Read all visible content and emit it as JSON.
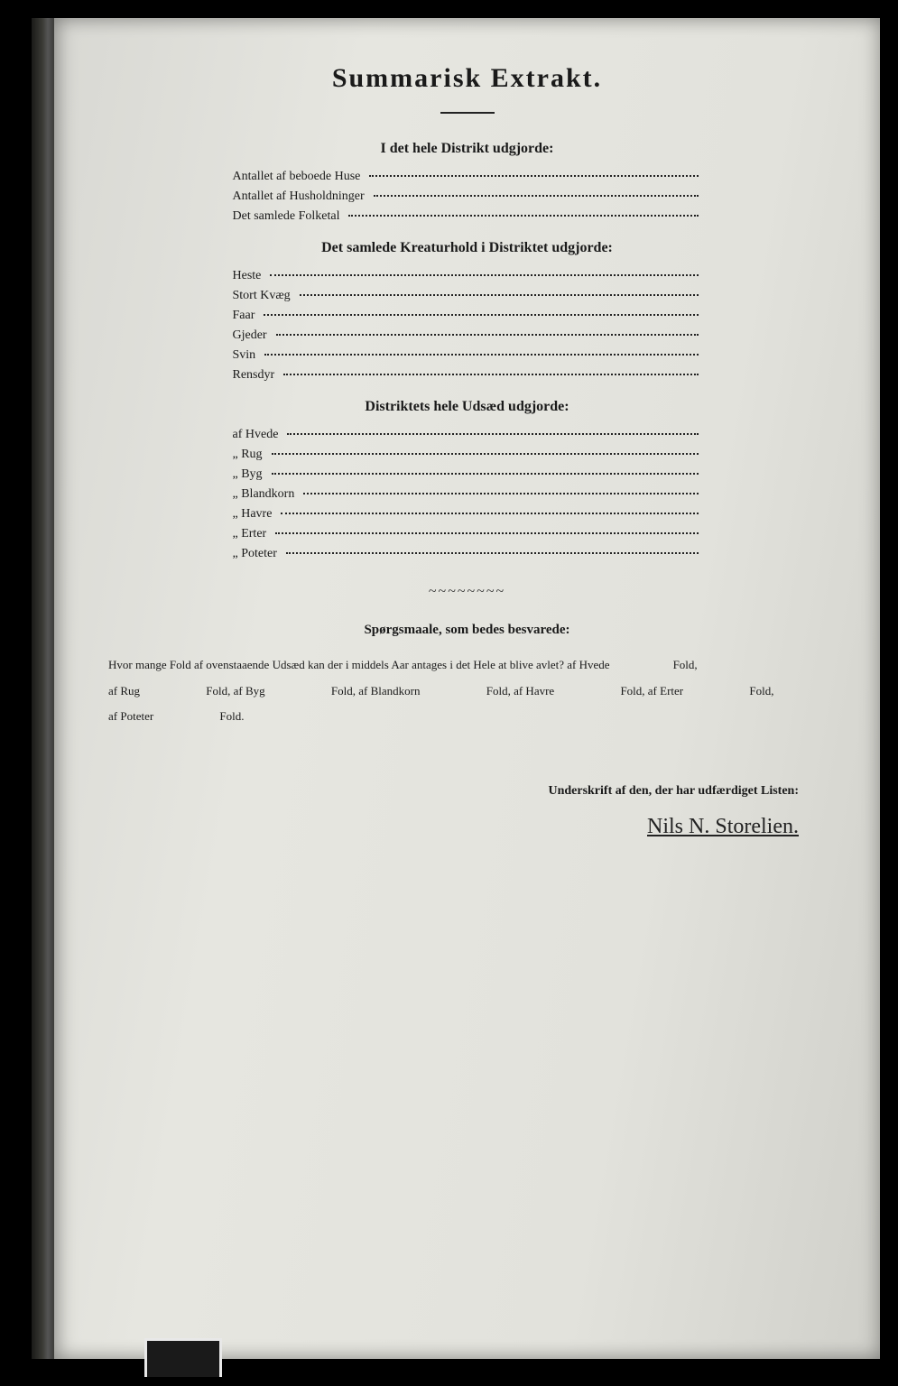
{
  "title": "Summarisk Extrakt.",
  "section1": {
    "heading": "I det hele Distrikt udgjorde:",
    "rows": [
      "Antallet af beboede Huse",
      "Antallet af Husholdninger",
      "Det samlede Folketal"
    ]
  },
  "section2": {
    "heading": "Det samlede Kreaturhold i Distriktet udgjorde:",
    "rows": [
      "Heste",
      "Stort Kvæg",
      "Faar",
      "Gjeder",
      "Svin",
      "Rensdyr"
    ]
  },
  "section3": {
    "heading": "Distriktets hele Udsæd udgjorde:",
    "rows": [
      "af Hvede",
      "„ Rug",
      "„ Byg",
      "„ Blandkorn",
      "„ Havre",
      "„ Erter",
      "„ Poteter"
    ]
  },
  "questions": {
    "heading": "Spørgsmaale, som bedes besvarede:",
    "line1": "Hvor mange Fold af ovenstaaende Udsæd kan der i middels Aar antages i det Hele at blive avlet?   af Hvede",
    "tail1": "Fold,",
    "line2_parts": [
      "af Rug",
      "Fold, af Byg",
      "Fold, af Blandkorn",
      "Fold, af Havre",
      "Fold, af Erter",
      "Fold,"
    ],
    "line3_parts": [
      "af Poteter",
      "Fold."
    ]
  },
  "signature": {
    "label": "Underskrift af den, der har udfærdiget Listen:",
    "name": "Nils N. Storelien."
  }
}
